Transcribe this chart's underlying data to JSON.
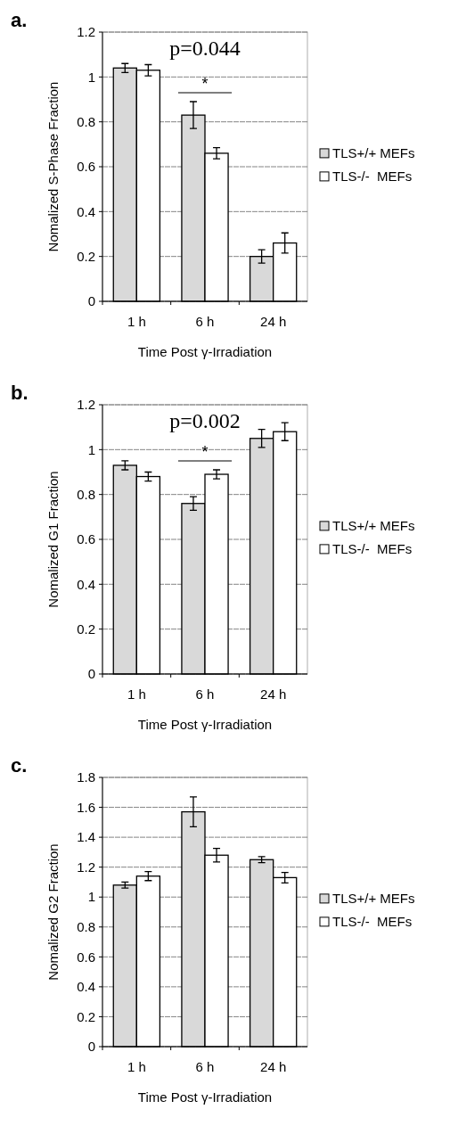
{
  "chart_data": [
    {
      "type": "bar",
      "title": "a.",
      "categories": [
        "1 h",
        "6 h",
        "24 h"
      ],
      "xlabel": "Time Post γ-Irradiation",
      "ylabel": "Nomalized S-Phase Fraction",
      "ylim": [
        0,
        1.2
      ],
      "yticks": [
        0,
        0.2,
        0.4,
        0.6,
        0.8,
        1,
        1.2
      ],
      "grid": "y",
      "legend": "right",
      "series": [
        {
          "name": "TLS+/+ MEFs",
          "color": "#d9d9d9",
          "values": [
            1.04,
            0.83,
            0.2
          ],
          "errors": [
            0.02,
            0.06,
            0.03
          ]
        },
        {
          "name": "TLS-/-  MEFs",
          "color": "#ffffff",
          "values": [
            1.03,
            0.66,
            0.26
          ],
          "errors": [
            0.025,
            0.025,
            0.045
          ]
        }
      ],
      "annotations": [
        "p=0.044",
        "*"
      ]
    },
    {
      "type": "bar",
      "title": "b.",
      "categories": [
        "1 h",
        "6 h",
        "24 h"
      ],
      "xlabel": "Time Post γ-Irradiation",
      "ylabel": "Nomalized G1 Fraction",
      "ylim": [
        0,
        1.2
      ],
      "yticks": [
        0,
        0.2,
        0.4,
        0.6,
        0.8,
        1,
        1.2
      ],
      "grid": "y",
      "legend": "right",
      "series": [
        {
          "name": "TLS+/+ MEFs",
          "color": "#d9d9d9",
          "values": [
            0.93,
            0.76,
            1.05
          ],
          "errors": [
            0.02,
            0.03,
            0.04
          ]
        },
        {
          "name": "TLS-/-  MEFs",
          "color": "#ffffff",
          "values": [
            0.88,
            0.89,
            1.08
          ],
          "errors": [
            0.02,
            0.02,
            0.04
          ]
        }
      ],
      "annotations": [
        "p=0.002",
        "*"
      ]
    },
    {
      "type": "bar",
      "title": "c.",
      "categories": [
        "1 h",
        "6 h",
        "24 h"
      ],
      "xlabel": "Time Post γ-Irradiation",
      "ylabel": "Nomalized G2 Fraction",
      "ylim": [
        0,
        1.8
      ],
      "yticks": [
        0,
        0.2,
        0.4,
        0.6,
        0.8,
        1,
        1.2,
        1.4,
        1.6,
        1.8
      ],
      "grid": "y",
      "legend": "right",
      "series": [
        {
          "name": "TLS+/+ MEFs",
          "color": "#d9d9d9",
          "values": [
            1.08,
            1.57,
            1.25
          ],
          "errors": [
            0.02,
            0.1,
            0.02
          ]
        },
        {
          "name": "TLS-/-  MEFs",
          "color": "#ffffff",
          "values": [
            1.14,
            1.28,
            1.13
          ],
          "errors": [
            0.03,
            0.045,
            0.035
          ]
        }
      ]
    }
  ]
}
